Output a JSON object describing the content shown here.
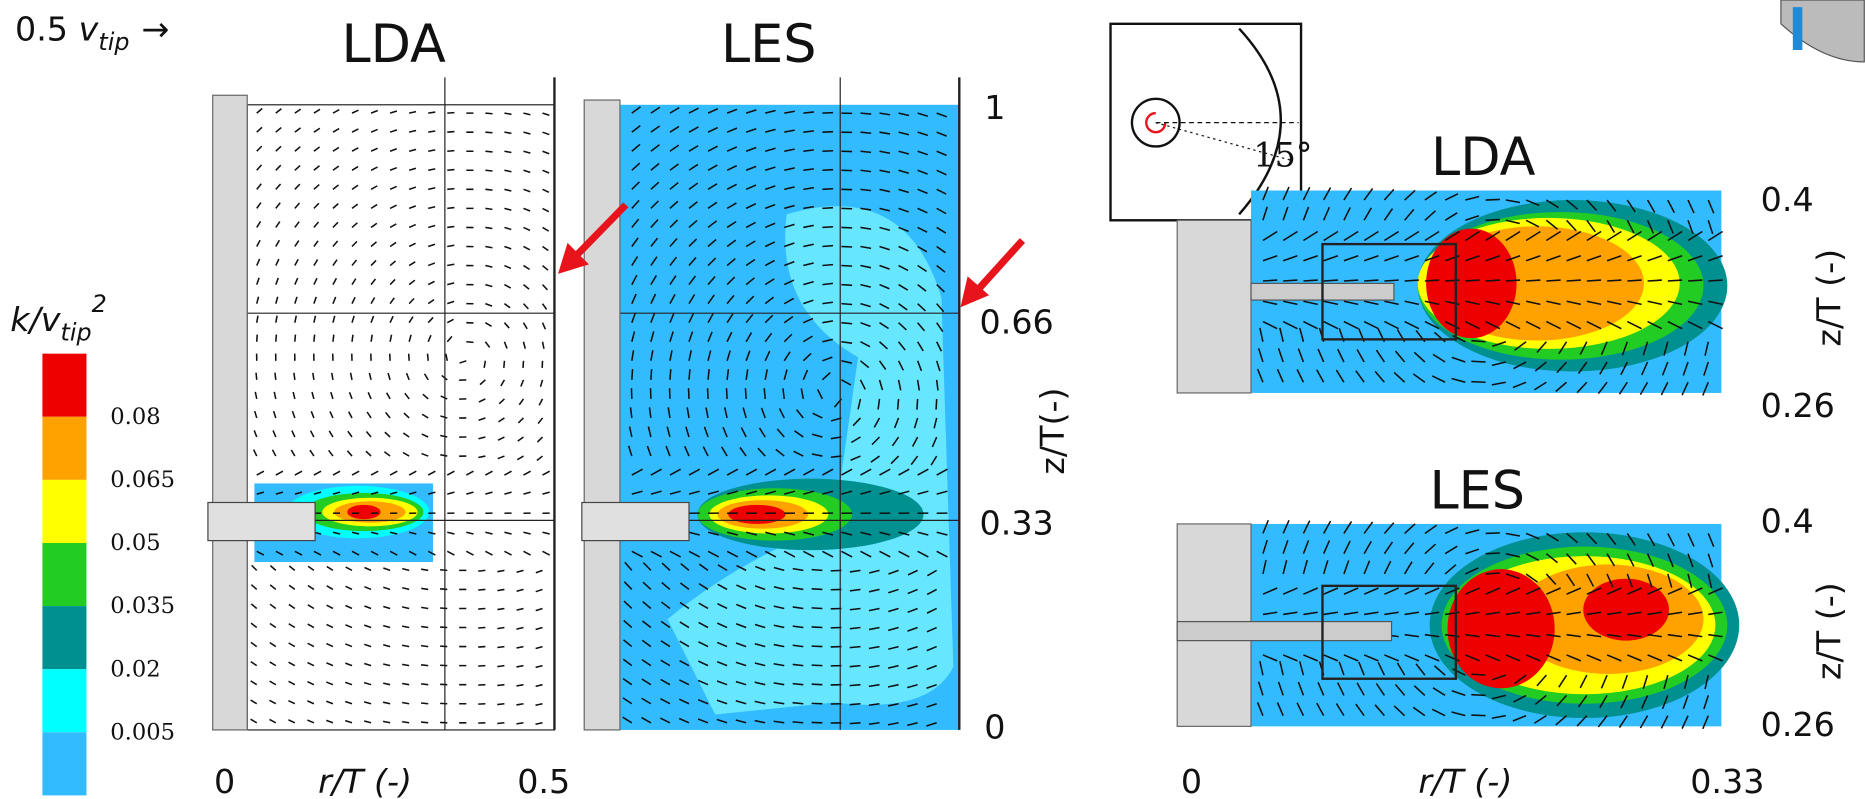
{
  "velocity_scale": {
    "factor": "0.5",
    "symbol": "v",
    "subscript": "tip",
    "arrow": "→"
  },
  "left_panels": {
    "titles": [
      "LDA",
      "LES"
    ],
    "x_axis": {
      "label": "r/T (-)",
      "ticks": [
        "0",
        "0.5"
      ]
    },
    "y_axis": {
      "label": "z/T(-)",
      "ticks": [
        "1",
        "0.66",
        "0.33",
        "0"
      ]
    }
  },
  "colorbar": {
    "title": {
      "symbol": "k/v",
      "subscript": "tip",
      "superscript": "2"
    },
    "labels": [
      "0.08",
      "0.065",
      "0.05",
      "0.035",
      "0.02",
      "0.005"
    ],
    "colors": [
      "#ee0000",
      "#ffa200",
      "#ffff00",
      "#22cc22",
      "#009090",
      "#00ffff",
      "#33bbff"
    ]
  },
  "inset": {
    "angle": "15°"
  },
  "right_panels": [
    {
      "title": "LDA",
      "y_ticks": [
        "0.4",
        "0.26"
      ],
      "y_label": "z/T (-)"
    },
    {
      "title": "LES",
      "y_ticks": [
        "0.4",
        "0.26"
      ],
      "y_label": "z/T (-)"
    }
  ],
  "right_x_axis": {
    "label": "r/T (-)",
    "ticks": [
      "0",
      "0.33"
    ]
  }
}
